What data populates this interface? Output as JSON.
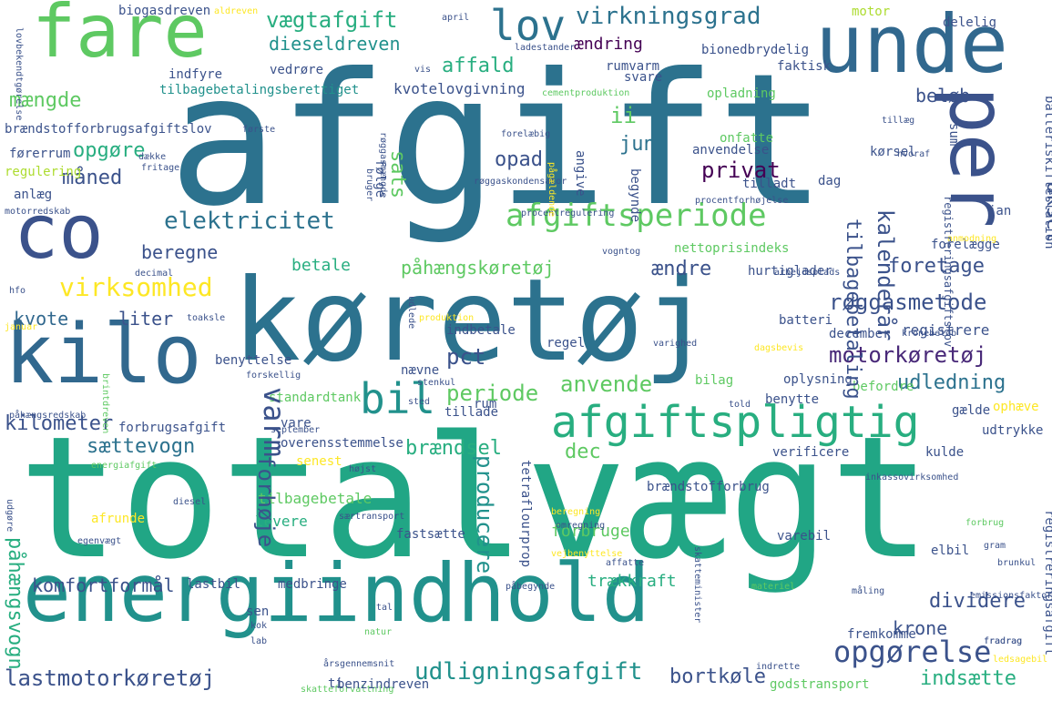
{
  "colors": {
    "background": "#ffffff",
    "palette": [
      "#440154",
      "#3b528b",
      "#2c728e",
      "#21918c",
      "#28ae80",
      "#5ec962",
      "#addc30",
      "#fde725"
    ]
  },
  "words": [
    {
      "text": "afgift",
      "color": "#2c728e"
    },
    {
      "text": "totalvægt",
      "color": "#21a685"
    },
    {
      "text": "køretøj",
      "color": "#2c728e"
    },
    {
      "text": "energiindhold",
      "color": "#21918c"
    },
    {
      "text": "unde",
      "color": "#31688e"
    },
    {
      "text": "fare",
      "color": "#5ec962"
    },
    {
      "text": "co",
      "color": "#3b528b"
    },
    {
      "text": "kilo",
      "color": "#31688e"
    },
    {
      "text": "per",
      "color": "#3b528b"
    },
    {
      "text": "afgiftspligtig",
      "color": "#28ae80"
    },
    {
      "text": "bil",
      "color": "#21918c"
    },
    {
      "text": "lov",
      "color": "#2c728e"
    },
    {
      "text": "afgiftsperiode",
      "color": "#5ec962"
    },
    {
      "text": "opgørelse",
      "color": "#3b528b"
    },
    {
      "text": "virkningsgrad",
      "color": "#2c728e"
    },
    {
      "text": "vægtafgift",
      "color": "#28ae80"
    },
    {
      "text": "dieseldreven",
      "color": "#21918c"
    },
    {
      "text": "affald",
      "color": "#28ae80"
    },
    {
      "text": "mængde",
      "color": "#5ec962"
    },
    {
      "text": "ændring",
      "color": "#440154"
    },
    {
      "text": "elektricitet",
      "color": "#2c728e"
    },
    {
      "text": "måned",
      "color": "#3b528b"
    },
    {
      "text": "opgøre",
      "color": "#28ae80"
    },
    {
      "text": "virksomhed",
      "color": "#fde725"
    },
    {
      "text": "beregne",
      "color": "#3b528b"
    },
    {
      "text": "kvote",
      "color": "#31688e"
    },
    {
      "text": "liter",
      "color": "#3b528b"
    },
    {
      "text": "motorkøretøj",
      "color": "#482878"
    },
    {
      "text": "røggasmetode",
      "color": "#3b528b"
    },
    {
      "text": "udledning",
      "color": "#2c728e"
    },
    {
      "text": "foretage",
      "color": "#3b528b"
    },
    {
      "text": "påhængskøretøj",
      "color": "#5ec962"
    },
    {
      "text": "betale",
      "color": "#28ae80"
    },
    {
      "text": "anvende",
      "color": "#5ec962"
    },
    {
      "text": "periode",
      "color": "#5ec962"
    },
    {
      "text": "pct",
      "color": "#3b528b"
    },
    {
      "text": "kilometer",
      "color": "#3b528b"
    },
    {
      "text": "sættevogn",
      "color": "#2c728e"
    },
    {
      "text": "brændsel",
      "color": "#28ae80"
    },
    {
      "text": "lastmotorkøretøj",
      "color": "#3b528b"
    },
    {
      "text": "udligningsafgift",
      "color": "#21918c"
    },
    {
      "text": "bortkøle",
      "color": "#3b528b"
    },
    {
      "text": "indsætte",
      "color": "#28ae80"
    },
    {
      "text": "dividere",
      "color": "#3b528b"
    },
    {
      "text": "krone",
      "color": "#3b528b"
    },
    {
      "text": "komfortformål",
      "color": "#3b528b"
    },
    {
      "text": "privat",
      "color": "#440154"
    },
    {
      "text": "juni",
      "color": "#2c728e"
    },
    {
      "text": "opad",
      "color": "#3b528b"
    },
    {
      "text": "beløb",
      "color": "#3b528b"
    },
    {
      "text": "ændre",
      "color": "#3b528b"
    },
    {
      "text": "ii",
      "color": "#5ec962"
    },
    {
      "text": "dec",
      "color": "#5ec962"
    },
    {
      "text": "forbrugsafgift",
      "color": "#3b528b"
    },
    {
      "text": "kvotelovgivning",
      "color": "#3b528b"
    },
    {
      "text": "tilbagebetalingsberettiget",
      "color": "#21918c"
    },
    {
      "text": "anlæg",
      "color": "#3b528b"
    },
    {
      "text": "registrere",
      "color": "#3b528b"
    },
    {
      "text": "december",
      "color": "#3b528b"
    },
    {
      "text": "vare",
      "color": "#3b528b"
    },
    {
      "text": "overensstemmelse",
      "color": "#3b528b"
    },
    {
      "text": "tilbagebetale",
      "color": "#5ec962"
    },
    {
      "text": "levere",
      "color": "#28ae80"
    },
    {
      "text": "forbruge",
      "color": "#5ec962"
    },
    {
      "text": "trækkraft",
      "color": "#28ae80"
    },
    {
      "text": "lastbil",
      "color": "#3b528b"
    },
    {
      "text": "medbringe",
      "color": "#3b528b"
    },
    {
      "text": "fastsætte",
      "color": "#3b528b"
    },
    {
      "text": "afrunde",
      "color": "#fde725"
    },
    {
      "text": "varebil",
      "color": "#3b528b"
    },
    {
      "text": "brændstofforbrug",
      "color": "#3b528b"
    },
    {
      "text": "verificere",
      "color": "#3b528b"
    },
    {
      "text": "kulde",
      "color": "#3b528b"
    },
    {
      "text": "udtrykke",
      "color": "#3b528b"
    },
    {
      "text": "batteri",
      "color": "#3b528b"
    },
    {
      "text": "oplysning",
      "color": "#3b528b"
    },
    {
      "text": "benytte",
      "color": "#3b528b"
    },
    {
      "text": "befordre",
      "color": "#5ec962"
    },
    {
      "text": "hurtiglader",
      "color": "#3b528b"
    },
    {
      "text": "senest",
      "color": "#fde725"
    },
    {
      "text": "standardtank",
      "color": "#5ec962"
    },
    {
      "text": "brændstofforbrugsafgiftslov",
      "color": "#3b528b"
    },
    {
      "text": "førerrum",
      "color": "#3b528b"
    },
    {
      "text": "regulering",
      "color": "#addc30"
    },
    {
      "text": "svare",
      "color": "#3b528b"
    },
    {
      "text": "opladning",
      "color": "#5ec962"
    },
    {
      "text": "faktisk",
      "color": "#3b528b"
    },
    {
      "text": "bionedbrydelig",
      "color": "#3b528b"
    },
    {
      "text": "delelig",
      "color": "#3b528b"
    },
    {
      "text": "motor",
      "color": "#addc30"
    },
    {
      "text": "rumvarm",
      "color": "#3b528b"
    },
    {
      "text": "vedrøre",
      "color": "#3b528b"
    },
    {
      "text": "indfyre",
      "color": "#3b528b"
    },
    {
      "text": "biogasdreven",
      "color": "#3b528b"
    },
    {
      "text": "aldreven",
      "color": "#fde725"
    },
    {
      "text": "april",
      "color": "#3b528b"
    },
    {
      "text": "ladestander",
      "color": "#3b528b"
    },
    {
      "text": "vis",
      "color": "#3b528b"
    },
    {
      "text": "cementproduktion",
      "color": "#5ec962"
    },
    {
      "text": "onfatte",
      "color": "#5ec962"
    },
    {
      "text": "anvendelse",
      "color": "#3b528b"
    },
    {
      "text": "kørsel",
      "color": "#3b528b"
    },
    {
      "text": "tillæg",
      "color": "#3b528b"
    },
    {
      "text": "hvoraf",
      "color": "#3b528b"
    },
    {
      "text": "tilladt",
      "color": "#3b528b"
    },
    {
      "text": "dag",
      "color": "#3b528b"
    },
    {
      "text": "jan",
      "color": "#3b528b"
    },
    {
      "text": "forelægge",
      "color": "#3b528b"
    },
    {
      "text": "nettoprisindeks",
      "color": "#5ec962"
    },
    {
      "text": "procentforhøjelse",
      "color": "#3b528b"
    },
    {
      "text": "procentregulering",
      "color": "#3b528b"
    },
    {
      "text": "vogntog",
      "color": "#3b528b"
    },
    {
      "text": "arbejdsplads",
      "color": "#3b528b"
    },
    {
      "text": "anmodning",
      "color": "#fde725"
    },
    {
      "text": "røggaskondensator",
      "color": "#3b528b"
    },
    {
      "text": "første",
      "color": "#3b528b"
    },
    {
      "text": "forelæbig",
      "color": "#3b528b"
    },
    {
      "text": "dække",
      "color": "#3b528b"
    },
    {
      "text": "fritage",
      "color": "#3b528b"
    },
    {
      "text": "motorredskab",
      "color": "#3b528b"
    },
    {
      "text": "decimal",
      "color": "#3b528b"
    },
    {
      "text": "hfo",
      "color": "#3b528b"
    },
    {
      "text": "januar",
      "color": "#fde725"
    },
    {
      "text": "toaksle",
      "color": "#3b528b"
    },
    {
      "text": "benyttelse",
      "color": "#3b528b"
    },
    {
      "text": "forskellig",
      "color": "#3b528b"
    },
    {
      "text": "påhængsredskab",
      "color": "#3b528b"
    },
    {
      "text": "september",
      "color": "#3b528b"
    },
    {
      "text": "energiafgift",
      "color": "#5ec962"
    },
    {
      "text": "diesel",
      "color": "#3b528b"
    },
    {
      "text": "højst",
      "color": "#3b528b"
    },
    {
      "text": "særtransport",
      "color": "#3b528b"
    },
    {
      "text": "beregning",
      "color": "#fde725"
    },
    {
      "text": "omregning",
      "color": "#3b528b"
    },
    {
      "text": "egenvægt",
      "color": "#3b528b"
    },
    {
      "text": "påbegynde",
      "color": "#3b528b"
    },
    {
      "text": "affatte",
      "color": "#3b528b"
    },
    {
      "text": "vejbenyttelse",
      "color": "#fde725"
    },
    {
      "text": "kok",
      "color": "#3b528b"
    },
    {
      "text": "lab",
      "color": "#3b528b"
    },
    {
      "text": "sen",
      "color": "#3b528b"
    },
    {
      "text": "tal",
      "color": "#3b528b"
    },
    {
      "text": "natur",
      "color": "#5ec962"
    },
    {
      "text": "årsgennemsnit",
      "color": "#3b528b"
    },
    {
      "text": "skatteforvaltning",
      "color": "#5ec962"
    },
    {
      "text": "benzindreven",
      "color": "#3b528b"
    },
    {
      "text": "godstransport",
      "color": "#5ec962"
    },
    {
      "text": "indrette",
      "color": "#3b528b"
    },
    {
      "text": "ti",
      "color": "#3b528b"
    },
    {
      "text": "fremkomme",
      "color": "#3b528b"
    },
    {
      "text": "ledsagebil",
      "color": "#fde725"
    },
    {
      "text": "fradrag",
      "color": "#3b528b"
    },
    {
      "text": "fradrag",
      "color": "#3b528b"
    },
    {
      "text": "materiel",
      "color": "#5ec962"
    },
    {
      "text": "måling",
      "color": "#3b528b"
    },
    {
      "text": "emissionsfaktor",
      "color": "#3b528b"
    },
    {
      "text": "elbil",
      "color": "#3b528b"
    },
    {
      "text": "brunkul",
      "color": "#3b528b"
    },
    {
      "text": "gram",
      "color": "#3b528b"
    },
    {
      "text": "forbrug",
      "color": "#5ec962"
    },
    {
      "text": "inkassovirksomhed",
      "color": "#3b528b"
    },
    {
      "text": "told",
      "color": "#3b528b"
    },
    {
      "text": "gælde",
      "color": "#3b528b"
    },
    {
      "text": "ophæve",
      "color": "#fde725"
    },
    {
      "text": "kronebeløb",
      "color": "#3b528b"
    },
    {
      "text": "varighed",
      "color": "#3b528b"
    },
    {
      "text": "regel",
      "color": "#3b528b"
    },
    {
      "text": "indbetale",
      "color": "#3b528b"
    },
    {
      "text": "produktion",
      "color": "#fde725"
    },
    {
      "text": "nævne",
      "color": "#3b528b"
    },
    {
      "text": "stenkul",
      "color": "#3b528b"
    },
    {
      "text": "tillade",
      "color": "#3b528b"
    },
    {
      "text": "rum",
      "color": "#3b528b"
    },
    {
      "text": "sted",
      "color": "#3b528b"
    },
    {
      "text": "bilag",
      "color": "#5ec962"
    },
    {
      "text": "dagsbevis",
      "color": "#fde725"
    },
    {
      "text": "lovbekendtgørelse",
      "color": "#3b528b"
    },
    {
      "text": "varm",
      "color": "#3b528b"
    },
    {
      "text": "forhøje",
      "color": "#3b528b"
    },
    {
      "text": "påhængsvogn",
      "color": "#28ae80"
    },
    {
      "text": "tilbagebetaling",
      "color": "#3b528b"
    },
    {
      "text": "kalenderår",
      "color": "#3b528b"
    },
    {
      "text": "aksel",
      "color": "#3b528b"
    },
    {
      "text": "sats",
      "color": "#5ec962"
    },
    {
      "text": "producere",
      "color": "#21918c"
    },
    {
      "text": "tetraflourprop",
      "color": "#3b528b"
    },
    {
      "text": "skatteminister",
      "color": "#3b528b"
    },
    {
      "text": "registreringsafgift",
      "color": "#3b528b"
    },
    {
      "text": "registreringsafgiftslov",
      "color": "#3b528b"
    },
    {
      "text": "batteriskiftestation",
      "color": "#3b528b"
    },
    {
      "text": "følge",
      "color": "#3b528b"
    },
    {
      "text": "udlede",
      "color": "#3b528b"
    },
    {
      "text": "angive",
      "color": "#3b528b"
    },
    {
      "text": "begynde",
      "color": "#3b528b"
    },
    {
      "text": "pågældende",
      "color": "#fde725"
    },
    {
      "text": "bruger",
      "color": "#3b528b"
    },
    {
      "text": "røggasmængde",
      "color": "#3b528b"
    },
    {
      "text": "sum",
      "color": "#3b528b"
    },
    {
      "text": "udgøre",
      "color": "#3b528b"
    },
    {
      "text": "brintdreven",
      "color": "#5ec962"
    }
  ]
}
